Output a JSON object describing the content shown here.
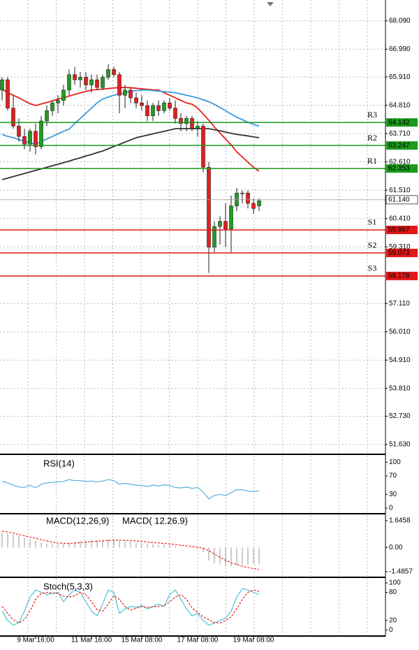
{
  "chart_data": [
    {
      "type": "candlestick",
      "categories": [
        null,
        null,
        null,
        null,
        null,
        null,
        "9 Mar 16:00",
        null,
        null,
        null,
        null,
        null,
        null,
        null,
        null,
        null,
        "11 Mar 16:00",
        null,
        null,
        null,
        null,
        null,
        null,
        null,
        null,
        "15 Mar 08:00",
        null,
        null,
        null,
        null,
        null,
        null,
        null,
        null,
        null,
        "17 Mar 08:00",
        null,
        null,
        null,
        null,
        null,
        null,
        null,
        null,
        null,
        "19 Mar 08:00",
        null
      ],
      "open": [
        65.4,
        65.8,
        64.7,
        64.0,
        63.6,
        63.3,
        63.8,
        63.2,
        64.2,
        64.6,
        64.9,
        65.0,
        65.4,
        66.0,
        65.8,
        65.9,
        65.6,
        65.8,
        65.5,
        65.9,
        66.2,
        66.0,
        65.2,
        65.4,
        65.1,
        64.9,
        64.8,
        64.4,
        64.8,
        64.6,
        64.9,
        64.7,
        64.3,
        64.1,
        64.3,
        63.9,
        64.0,
        62.4,
        59.3,
        60.1,
        60.3,
        60.0,
        60.9,
        61.4,
        61.4,
        61.0,
        60.9
      ],
      "high": [
        65.9,
        65.9,
        65.2,
        64.3,
        63.9,
        63.9,
        64.1,
        64.4,
        64.8,
        65.0,
        65.2,
        65.6,
        66.2,
        66.3,
        66.1,
        66.1,
        66.0,
        66.0,
        66.0,
        66.4,
        66.3,
        66.1,
        65.6,
        65.5,
        65.3,
        65.2,
        65.0,
        64.9,
        65.0,
        65.0,
        65.1,
        65.0,
        64.5,
        64.4,
        64.4,
        64.2,
        64.1,
        62.6,
        60.3,
        60.5,
        61.0,
        61.3,
        61.6,
        61.5,
        61.5,
        61.2,
        61.2
      ],
      "low": [
        65.0,
        64.6,
        63.9,
        63.4,
        63.1,
        63.0,
        62.9,
        63.1,
        64.0,
        64.4,
        64.5,
        64.8,
        65.2,
        65.6,
        65.5,
        65.4,
        65.3,
        65.4,
        65.4,
        65.8,
        65.9,
        64.5,
        64.7,
        64.9,
        64.7,
        64.6,
        64.2,
        64.2,
        64.4,
        64.5,
        64.6,
        64.1,
        63.8,
        63.8,
        63.8,
        63.6,
        62.2,
        58.3,
        59.1,
        59.4,
        59.3,
        59.1,
        60.7,
        61.0,
        60.8,
        60.6,
        60.7
      ],
      "close": [
        65.8,
        64.7,
        64.0,
        63.6,
        63.3,
        63.8,
        63.2,
        64.2,
        64.6,
        64.9,
        65.0,
        65.4,
        66.0,
        65.8,
        65.9,
        65.6,
        65.8,
        65.5,
        65.9,
        66.2,
        66.0,
        65.2,
        65.4,
        65.1,
        64.9,
        64.8,
        64.4,
        64.8,
        64.6,
        64.9,
        64.7,
        64.3,
        64.1,
        64.3,
        63.9,
        64.0,
        62.4,
        59.3,
        60.1,
        60.3,
        60.0,
        60.9,
        61.4,
        61.4,
        61.0,
        60.8,
        61.1
      ],
      "up_color": "#1f9e1f",
      "down_color": "#e02020",
      "wick_color": "#222222",
      "series": [
        {
          "color": "#e8211d",
          "values": [
            65.43,
            65.3,
            65.2,
            65.1,
            64.98,
            64.87,
            64.8,
            64.86,
            64.92,
            64.98,
            65.05,
            65.1,
            65.17,
            65.23,
            65.29,
            65.35,
            65.4,
            65.42,
            65.44,
            65.46,
            65.48,
            65.5,
            65.5,
            65.49,
            65.47,
            65.45,
            65.43,
            65.41,
            65.4,
            65.3,
            65.2,
            65.1,
            65.0,
            64.9,
            64.85,
            64.7,
            64.47,
            64.23,
            63.97,
            63.73,
            63.5,
            63.27,
            63.0,
            62.8,
            62.6,
            62.4,
            62.25
          ]
        },
        {
          "color": "#3a9be0",
          "values": [
            63.68,
            63.6,
            63.55,
            63.48,
            63.4,
            63.35,
            63.3,
            63.4,
            63.5,
            63.6,
            63.7,
            63.8,
            63.88,
            64.1,
            64.3,
            64.5,
            64.7,
            64.9,
            65.05,
            65.13,
            65.2,
            65.25,
            65.3,
            65.35,
            65.38,
            65.4,
            65.4,
            65.38,
            65.36,
            65.34,
            65.32,
            65.3,
            65.25,
            65.2,
            65.15,
            65.1,
            65.02,
            64.95,
            64.85,
            64.72,
            64.6,
            64.47,
            64.35,
            64.25,
            64.15,
            64.07,
            64.0
          ]
        },
        {
          "color": "#333333",
          "values": [
            61.92,
            61.98,
            62.04,
            62.1,
            62.16,
            62.22,
            62.28,
            62.34,
            62.4,
            62.46,
            62.52,
            62.58,
            62.64,
            62.71,
            62.77,
            62.84,
            62.9,
            62.97,
            63.03,
            63.12,
            63.21,
            63.29,
            63.38,
            63.46,
            63.55,
            63.6,
            63.65,
            63.7,
            63.75,
            63.8,
            63.85,
            63.9,
            63.9,
            63.9,
            63.9,
            63.9,
            63.9,
            63.9,
            63.86,
            63.82,
            63.77,
            63.72,
            63.68,
            63.65,
            63.62,
            63.58,
            63.55
          ]
        }
      ],
      "levels": {
        "names": [
          "R3",
          "R2",
          "R1",
          "S1",
          "S2",
          "S3"
        ],
        "values": [
          64.142,
          63.247,
          62.353,
          59.967,
          59.073,
          58.178
        ],
        "value_labels": [
          "64.142",
          "63.247",
          "62.353",
          "59.967",
          "59.073",
          "58.178"
        ],
        "colors": [
          "#1a9a1a",
          "#1a9a1a",
          "#1a9a1a",
          "#e01818",
          "#e01818",
          "#e01818"
        ]
      },
      "current": {
        "value": 61.14,
        "value_label": "61.140",
        "color": "#9a9a9a"
      },
      "ylim": [
        51.25,
        68.9
      ],
      "yticks": [
        {
          "value": 68.09,
          "label": "68.090"
        },
        {
          "value": 66.99,
          "label": "66.990"
        },
        {
          "value": 65.91,
          "label": "65.910"
        },
        {
          "value": 64.81,
          "label": "64.810"
        },
        {
          "value": 63.71,
          "label": "63.710"
        },
        {
          "value": 62.61,
          "label": "62.610"
        },
        {
          "value": 61.51,
          "label": "61.510"
        },
        {
          "value": 60.41,
          "label": "60.410"
        },
        {
          "value": 59.31,
          "label": "59.310"
        },
        {
          "value": 57.11,
          "label": "57.110"
        },
        {
          "value": 56.01,
          "label": "56.010"
        },
        {
          "value": 54.91,
          "label": "54.910"
        },
        {
          "value": 53.81,
          "label": "53.810"
        },
        {
          "value": 52.73,
          "label": "52.730"
        },
        {
          "value": 51.63,
          "label": "51.630"
        }
      ],
      "grid": true
    },
    {
      "type": "line",
      "title": "RSI(14)",
      "series": [
        {
          "color": "#5aaee0",
          "values": [
            58,
            55,
            50,
            46,
            45,
            50,
            44,
            52,
            55,
            56,
            57,
            58,
            62,
            60,
            60,
            58,
            59,
            57,
            59,
            62,
            60,
            52,
            54,
            52,
            50,
            49,
            47,
            50,
            48,
            51,
            49,
            45,
            44,
            46,
            43,
            45,
            35,
            20,
            28,
            30,
            27,
            34,
            40,
            40,
            37,
            36,
            38
          ]
        }
      ],
      "ylim": [
        -9,
        114
      ],
      "yticks": [
        100,
        70,
        30,
        0
      ]
    },
    {
      "type": "macd",
      "title": "MACD(12,26,9)",
      "subtitle": "MACD( 12.26.9)",
      "histogram": {
        "color": "#9a9a9a",
        "values": [
          0.9,
          0.85,
          0.8,
          0.7,
          0.6,
          0.5,
          0.4,
          0.3,
          0.25,
          0.2,
          0.2,
          0.22,
          0.3,
          0.35,
          0.4,
          0.42,
          0.45,
          0.45,
          0.45,
          0.5,
          0.5,
          0.42,
          0.4,
          0.35,
          0.3,
          0.25,
          0.2,
          0.2,
          0.18,
          0.18,
          0.15,
          0.1,
          0.05,
          0.0,
          -0.05,
          -0.1,
          -0.3,
          -0.8,
          -0.95,
          -1.05,
          -1.15,
          -1.15,
          -1.1,
          -1.05,
          -1.05,
          -1.0,
          -1.0
        ]
      },
      "signal": {
        "color": "#e8211d",
        "values": [
          1.0,
          0.95,
          0.88,
          0.8,
          0.72,
          0.64,
          0.56,
          0.48,
          0.4,
          0.33,
          0.28,
          0.25,
          0.25,
          0.27,
          0.3,
          0.33,
          0.36,
          0.39,
          0.41,
          0.43,
          0.45,
          0.45,
          0.44,
          0.42,
          0.4,
          0.37,
          0.34,
          0.31,
          0.28,
          0.25,
          0.22,
          0.18,
          0.14,
          0.1,
          0.06,
          0.02,
          -0.05,
          -0.2,
          -0.4,
          -0.6,
          -0.78,
          -0.93,
          -1.05,
          -1.15,
          -1.23,
          -1.3,
          -1.35
        ]
      },
      "ylim": [
        -1.79,
        1.99
      ],
      "yticks": [
        1.6458,
        {
          "value": 0,
          "label": "0.00"
        },
        -1.4857
      ]
    },
    {
      "type": "line",
      "title": "Stoch(5,3,3)",
      "series": [
        {
          "color": "#4cc3d9",
          "values": [
            40,
            20,
            10,
            15,
            40,
            70,
            85,
            80,
            75,
            78,
            80,
            60,
            75,
            85,
            80,
            60,
            40,
            30,
            55,
            85,
            80,
            35,
            45,
            50,
            48,
            52,
            45,
            50,
            55,
            50,
            75,
            85,
            65,
            45,
            30,
            35,
            20,
            10,
            15,
            20,
            25,
            40,
            70,
            88,
            85,
            80,
            75
          ]
        },
        {
          "color": "#e8211d",
          "dashed": true,
          "values": [
            50,
            35,
            22,
            15,
            22,
            40,
            65,
            78,
            80,
            78,
            78,
            72,
            70,
            73,
            80,
            75,
            60,
            43,
            40,
            55,
            73,
            65,
            50,
            42,
            46,
            50,
            48,
            49,
            50,
            52,
            60,
            70,
            75,
            65,
            47,
            37,
            28,
            22,
            15,
            15,
            20,
            28,
            45,
            65,
            80,
            85,
            82
          ]
        }
      ],
      "ylim": [
        -10,
        109
      ],
      "yticks": [
        100,
        80,
        20,
        0
      ]
    }
  ]
}
